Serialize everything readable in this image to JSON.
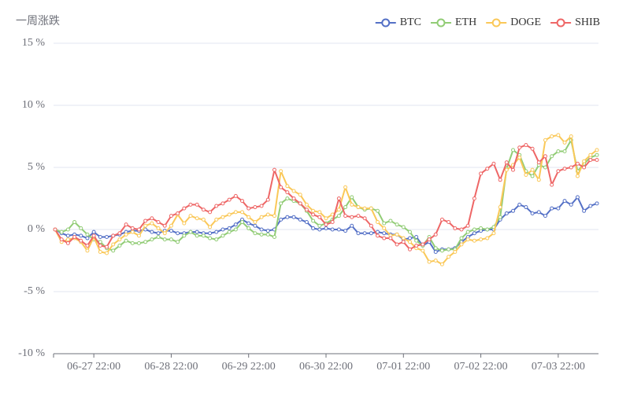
{
  "chart_data": {
    "type": "line",
    "y_axis_label": "一周涨跌",
    "categories": [
      null,
      null,
      null,
      null,
      null,
      null,
      "06-27 22:00",
      null,
      null,
      null,
      null,
      null,
      null,
      null,
      null,
      null,
      null,
      null,
      "06-28 22:00",
      null,
      null,
      null,
      null,
      null,
      null,
      null,
      null,
      null,
      null,
      null,
      "06-29 22:00",
      null,
      null,
      null,
      null,
      null,
      null,
      null,
      null,
      null,
      null,
      null,
      "06-30 22:00",
      null,
      null,
      null,
      null,
      null,
      null,
      null,
      null,
      null,
      null,
      null,
      "07-01 22:00",
      null,
      null,
      null,
      null,
      null,
      null,
      null,
      null,
      null,
      null,
      null,
      "07-02 22:00",
      null,
      null,
      null,
      null,
      null,
      null,
      null,
      null,
      null,
      null,
      null,
      "07-03 22:00",
      null,
      null,
      null,
      null,
      null,
      null
    ],
    "series": [
      {
        "name": "BTC",
        "color": "#5470c6",
        "values": [
          0,
          -0.3,
          -0.5,
          -0.4,
          -0.5,
          -0.7,
          -0.2,
          -0.6,
          -0.6,
          -0.5,
          -0.4,
          -0.2,
          -0.1,
          -0.1,
          0,
          -0.2,
          -0.3,
          -0.1,
          -0.1,
          -0.3,
          -0.3,
          -0.2,
          -0.2,
          -0.3,
          -0.3,
          -0.2,
          0,
          0.1,
          0.4,
          0.8,
          0.5,
          0.3,
          0,
          -0.1,
          0,
          0.8,
          1,
          1,
          0.8,
          0.6,
          0.1,
          0,
          0.1,
          0,
          0,
          -0.1,
          0.3,
          -0.3,
          -0.3,
          -0.3,
          -0.2,
          -0.3,
          -0.4,
          -0.4,
          -0.8,
          -0.7,
          -0.6,
          -1.3,
          -1,
          -1.8,
          -1.6,
          -1.6,
          -1.5,
          -1,
          -0.6,
          -0.3,
          -0.1,
          0,
          0,
          0.8,
          1.3,
          1.5,
          2,
          1.8,
          1.3,
          1.4,
          1.1,
          1.7,
          1.7,
          2.3,
          2,
          2.6,
          1.5,
          1.9,
          2.1
        ]
      },
      {
        "name": "ETH",
        "color": "#91cc75",
        "values": [
          0,
          -0.2,
          0,
          0.6,
          0.1,
          -0.4,
          -0.8,
          -1,
          -1.5,
          -1.7,
          -1.3,
          -0.9,
          -1.1,
          -1.1,
          -1,
          -0.8,
          -0.6,
          -0.8,
          -0.8,
          -1,
          -0.5,
          -0.2,
          -0.5,
          -0.5,
          -0.7,
          -0.8,
          -0.5,
          -0.2,
          0,
          0.6,
          0.1,
          -0.3,
          -0.4,
          -0.4,
          -0.6,
          2.1,
          2.5,
          2.3,
          2.1,
          1.5,
          0.7,
          0.3,
          0.5,
          0.8,
          1.1,
          1.8,
          2.6,
          1.8,
          1.6,
          1.7,
          1.5,
          0.5,
          0.7,
          0.4,
          0.2,
          -0.2,
          -0.9,
          -1.3,
          -0.6,
          -1.5,
          -1.7,
          -1.6,
          -1.6,
          -0.7,
          -0.2,
          0,
          0.1,
          0,
          0.2,
          1,
          4.9,
          6.4,
          6,
          4.7,
          4.3,
          5.2,
          5,
          5.9,
          6.3,
          6.3,
          7.2,
          4.7,
          5.3,
          5.8,
          6
        ]
      },
      {
        "name": "DOGE",
        "color": "#fac858",
        "values": [
          0,
          -1,
          -0.8,
          -0.7,
          -1,
          -1.7,
          -0.6,
          -1.8,
          -1.9,
          -1.2,
          -0.8,
          -0.4,
          -0.2,
          -0.5,
          0.3,
          0.5,
          0.1,
          -0.3,
          0.3,
          1.2,
          0.5,
          1.1,
          0.9,
          0.8,
          0.2,
          0.8,
          1,
          1.2,
          1.4,
          1.4,
          1,
          0.6,
          1,
          1.2,
          1.1,
          4.7,
          3.5,
          3.1,
          2.8,
          2,
          1.5,
          1.4,
          0.9,
          1.2,
          1.6,
          3.4,
          2,
          1.8,
          1.7,
          1.7,
          0.6,
          0.1,
          -0.5,
          -0.4,
          -0.7,
          -1,
          -1.5,
          -1.7,
          -2.6,
          -2.5,
          -2.8,
          -2.2,
          -1.8,
          -1.2,
          -0.8,
          -0.9,
          -0.8,
          -0.7,
          -0.3,
          1.8,
          4.8,
          5.2,
          5.8,
          4.4,
          4.8,
          4,
          7.2,
          7.5,
          7.6,
          7,
          7.5,
          4.3,
          5.5,
          6,
          6.4
        ]
      },
      {
        "name": "SHIB",
        "color": "#ee6666",
        "values": [
          0,
          -0.8,
          -1.1,
          -0.6,
          -0.9,
          -1.3,
          -0.5,
          -1.3,
          -1.4,
          -0.5,
          -0.3,
          0.4,
          0.1,
          0,
          0.7,
          0.9,
          0.6,
          0.3,
          1.1,
          1.3,
          1.7,
          2,
          2,
          1.6,
          1.4,
          1.9,
          2.1,
          2.4,
          2.7,
          2.3,
          1.7,
          1.8,
          1.9,
          2.4,
          4.8,
          3.4,
          3,
          2.5,
          2.1,
          1.6,
          1.2,
          1,
          0.4,
          0.6,
          2.5,
          1.1,
          1,
          1.1,
          0.9,
          0.3,
          -0.5,
          -0.7,
          -0.7,
          -1.2,
          -1,
          -1.6,
          -1.3,
          -1.2,
          -0.8,
          -0.4,
          0.8,
          0.6,
          0.1,
          0,
          0.3,
          2.5,
          4.5,
          4.9,
          5.3,
          4,
          5.4,
          4.8,
          6.6,
          6.8,
          6.5,
          5.4,
          5.9,
          3.6,
          4.7,
          4.9,
          5,
          5.3,
          5,
          5.6,
          5.6
        ]
      }
    ],
    "ylim": [
      -10,
      15
    ],
    "yticks": [
      {
        "value": -10,
        "label": "-10 %"
      },
      {
        "value": -5,
        "label": "-5 %"
      },
      {
        "value": 0,
        "label": "0 %"
      },
      {
        "value": 5,
        "label": "5 %"
      },
      {
        "value": 10,
        "label": "10 %"
      },
      {
        "value": 15,
        "label": "15 %"
      }
    ],
    "grid": true,
    "legend": "top-right"
  }
}
